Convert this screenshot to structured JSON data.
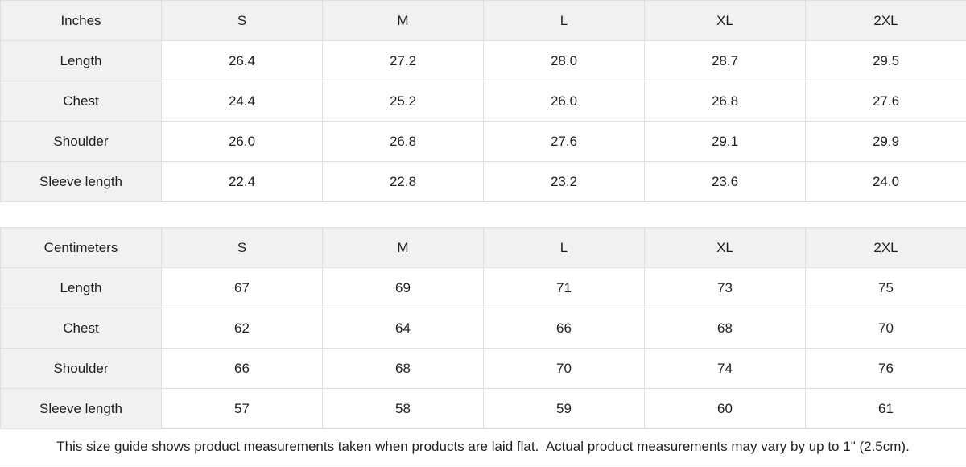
{
  "colors": {
    "header_bg": "#f1f1f1",
    "border": "#e0e0e0",
    "text": "#1f1f1f"
  },
  "tables": [
    {
      "unit_label": "Inches",
      "size_headers": [
        "S",
        "M",
        "L",
        "XL",
        "2XL"
      ],
      "rows": [
        {
          "label": "Length",
          "values": [
            "26.4",
            "27.2",
            "28.0",
            "28.7",
            "29.5"
          ]
        },
        {
          "label": "Chest",
          "values": [
            "24.4",
            "25.2",
            "26.0",
            "26.8",
            "27.6"
          ]
        },
        {
          "label": "Shoulder",
          "values": [
            "26.0",
            "26.8",
            "27.6",
            "29.1",
            "29.9"
          ]
        },
        {
          "label": "Sleeve length",
          "values": [
            "22.4",
            "22.8",
            "23.2",
            "23.6",
            "24.0"
          ]
        }
      ]
    },
    {
      "unit_label": "Centimeters",
      "size_headers": [
        "S",
        "M",
        "L",
        "XL",
        "2XL"
      ],
      "rows": [
        {
          "label": "Length",
          "values": [
            "67",
            "69",
            "71",
            "73",
            "75"
          ]
        },
        {
          "label": "Chest",
          "values": [
            "62",
            "64",
            "66",
            "68",
            "70"
          ]
        },
        {
          "label": "Shoulder",
          "values": [
            "66",
            "68",
            "70",
            "74",
            "76"
          ]
        },
        {
          "label": "Sleeve length",
          "values": [
            "57",
            "58",
            "59",
            "60",
            "61"
          ]
        }
      ]
    }
  ],
  "footer": {
    "note": "This size guide shows product measurements taken when products are laid flat.  Actual product measurements may vary by up to 1\" (2.5cm)."
  }
}
